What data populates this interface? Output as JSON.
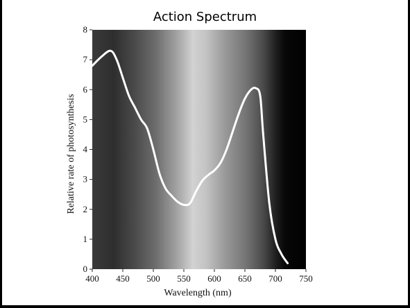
{
  "page": {
    "title": "Action Spectrum"
  },
  "chart_data": {
    "type": "line",
    "title": "Action Spectrum",
    "xlabel": "Wavelength (nm)",
    "ylabel": "Relative rate of photosynthesis",
    "xlim": [
      400,
      750
    ],
    "ylim": [
      0,
      8
    ],
    "xticks": [
      400,
      450,
      500,
      550,
      600,
      650,
      700,
      750
    ],
    "yticks": [
      0,
      1,
      2,
      3,
      4,
      5,
      6,
      7,
      8
    ],
    "background": "grayscale visible-spectrum gradient",
    "curve_color": "#ffffff",
    "series": [
      {
        "x": [
          400,
          415,
          430,
          440,
          450,
          460,
          470,
          480,
          490,
          500,
          510,
          520,
          530,
          540,
          550,
          560,
          570,
          580,
          590,
          600,
          610,
          620,
          630,
          640,
          650,
          660,
          668,
          675,
          680,
          690,
          700,
          710,
          720
        ],
        "values": [
          6.8,
          7.1,
          7.3,
          7.0,
          6.4,
          5.8,
          5.4,
          5.0,
          4.7,
          4.0,
          3.2,
          2.7,
          2.45,
          2.25,
          2.15,
          2.2,
          2.6,
          2.95,
          3.15,
          3.3,
          3.55,
          4.0,
          4.6,
          5.2,
          5.7,
          6.0,
          6.05,
          5.8,
          4.5,
          2.2,
          1.0,
          0.5,
          0.2
        ]
      }
    ]
  }
}
